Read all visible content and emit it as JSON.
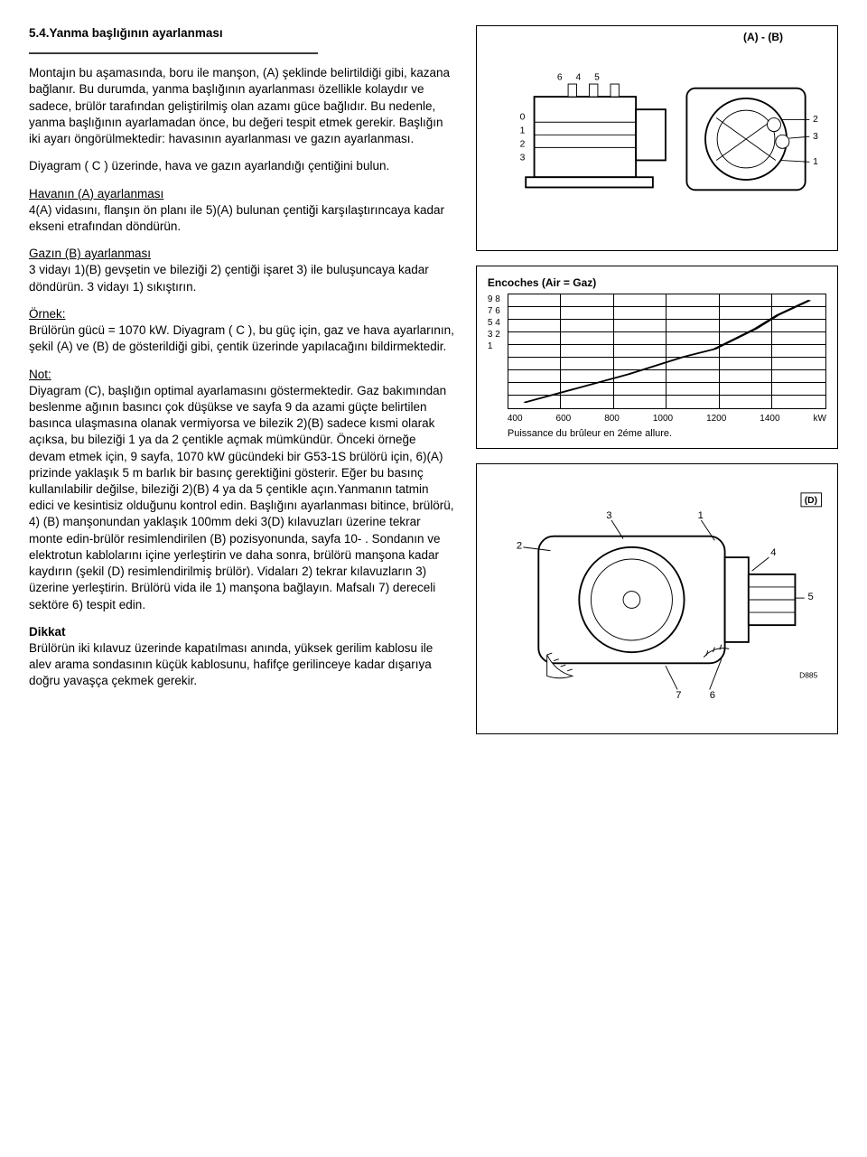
{
  "section": {
    "number": "5.4.",
    "title": "Yanma başlığının ayarlanması"
  },
  "left": {
    "intro": "Montajın bu aşamasında, boru ile manşon, (A) şeklinde belirtildiği gibi,  kazana bağlanır. Bu durumda, yanma başlığının ayarlanması özellikle kolaydır ve sadece, brülör tarafından geliştirilmiş olan azamı  güce bağlıdır. Bu nedenle,  yanma başlığının ayarlamadan önce, bu değeri tespit etmek gerekir. Başlığın iki  ayarı öngörülmektedir: havasının ayarlanması ve gazın ayarlanması.",
    "diagram_c": "Diyagram ( C ) üzerinde, hava ve gazın ayarlandığı çentiğini bulun.",
    "air_head": "Havanın (A) ayarlanması",
    "air_body": "4(A) vidasını, flanşın ön planı ile 5)(A) bulunan çentiği karşılaştırıncaya kadar ekseni etrafından döndürün.",
    "gas_head": "Gazın (B) ayarlanması",
    "gas_body": "3 vidayı 1)(B) gevşetin ve  bileziği  2)  çentiği işaret 3)  ile buluşuncaya kadar döndürün. 3 vidayı 1) sıkıştırın.",
    "example_head": "Örnek:",
    "example_body": "Brülörün gücü = 1070 kW. Diyagram ( C ), bu güç için, gaz ve hava ayarlarının, şekil (A) ve (B) de gösterildiği gibi,  çentik üzerinde yapılacağını bildirmektedir.",
    "note_head": "Not:",
    "note_body": "Diyagram (C), başlığın optimal ayarlamasını göstermektedir. Gaz bakımından beslenme ağının basıncı çok düşükse ve sayfa 9 da azami güçte belirtilen basınca ulaşmasına olanak vermiyorsa ve bilezik 2)(B) sadece kısmi olarak açıksa, bu bileziği 1 ya da 2 çentikle açmak mümkündür. Önceki örneğe devam etmek için, 9 sayfa, 1070 kW gücündeki bir G53-1S brülörü için, 6)(A) prizinde yaklaşık 5 m barlık bir basınç gerektiğini gösterir. Eğer bu basınç  kullanılabilir değilse, bileziği 2)(B) 4 ya da 5 çentikle açın.Yanmanın  tatmin edici ve kesintisiz olduğunu kontrol edin. Başlığını ayarlanması bitince, brülörü, 4) (B) manşonundan yaklaşık 100mm deki 3(D) kılavuzları üzerine tekrar monte edin-brülör  resimlendirilen (B) pozisyonunda, sayfa 10- . Sondanın ve elektrotun kablolarını içine yerleştirin ve daha sonra, brülörü manşona  kadar  kaydırın (şekil (D) resimlendirilmiş brülör). Vidaları 2) tekrar kılavuzların 3) üzerine yerleştirin. Brülörü  vida ile 1) manşona bağlayın. Mafsalı 7) dereceli sektöre 6) tespit edin.",
    "warn_head": "Dikkat",
    "warn_body": " Brülörün iki kılavuz üzerinde kapatılması anında, yüksek gerilim kablosu ile  alev arama sondasının küçük kablosunu, hafifçe  gerilinceye kadar dışarıya doğru yavaşça çekmek gerekir."
  },
  "figAB": {
    "label": "(A)       -      (B)",
    "callouts_left_top": [
      "6",
      "4",
      "5"
    ],
    "callouts_left_side": [
      "0",
      "1",
      "2",
      "3"
    ],
    "callouts_right": [
      "2",
      "3",
      "1"
    ]
  },
  "chart": {
    "title": "Encoches (Air = Gaz)",
    "y_ticks": [
      "9",
      "8",
      "7",
      "6",
      "5",
      "4",
      "3",
      "2",
      "1"
    ],
    "x_ticks": [
      "400",
      "600",
      "800",
      "1000",
      "1200",
      "1400",
      "kW"
    ],
    "x_caption": "Puissance du brûleur en 2éme allure.",
    "grid": {
      "cols": 6,
      "rows": 9
    },
    "line_points": [
      [
        0.05,
        0.95
      ],
      [
        0.38,
        0.7
      ],
      [
        0.55,
        0.55
      ],
      [
        0.65,
        0.48
      ],
      [
        0.78,
        0.3
      ],
      [
        0.85,
        0.18
      ],
      [
        0.95,
        0.05
      ]
    ],
    "line_color": "#000"
  },
  "figD": {
    "labelD": "(D)",
    "callouts": [
      "2",
      "3",
      "1",
      "4",
      "5",
      "7",
      "6"
    ],
    "code": "D885"
  },
  "style": {
    "text_color": "#000",
    "bg": "#fff",
    "border": "#000",
    "rule": "#3a3a3a"
  }
}
